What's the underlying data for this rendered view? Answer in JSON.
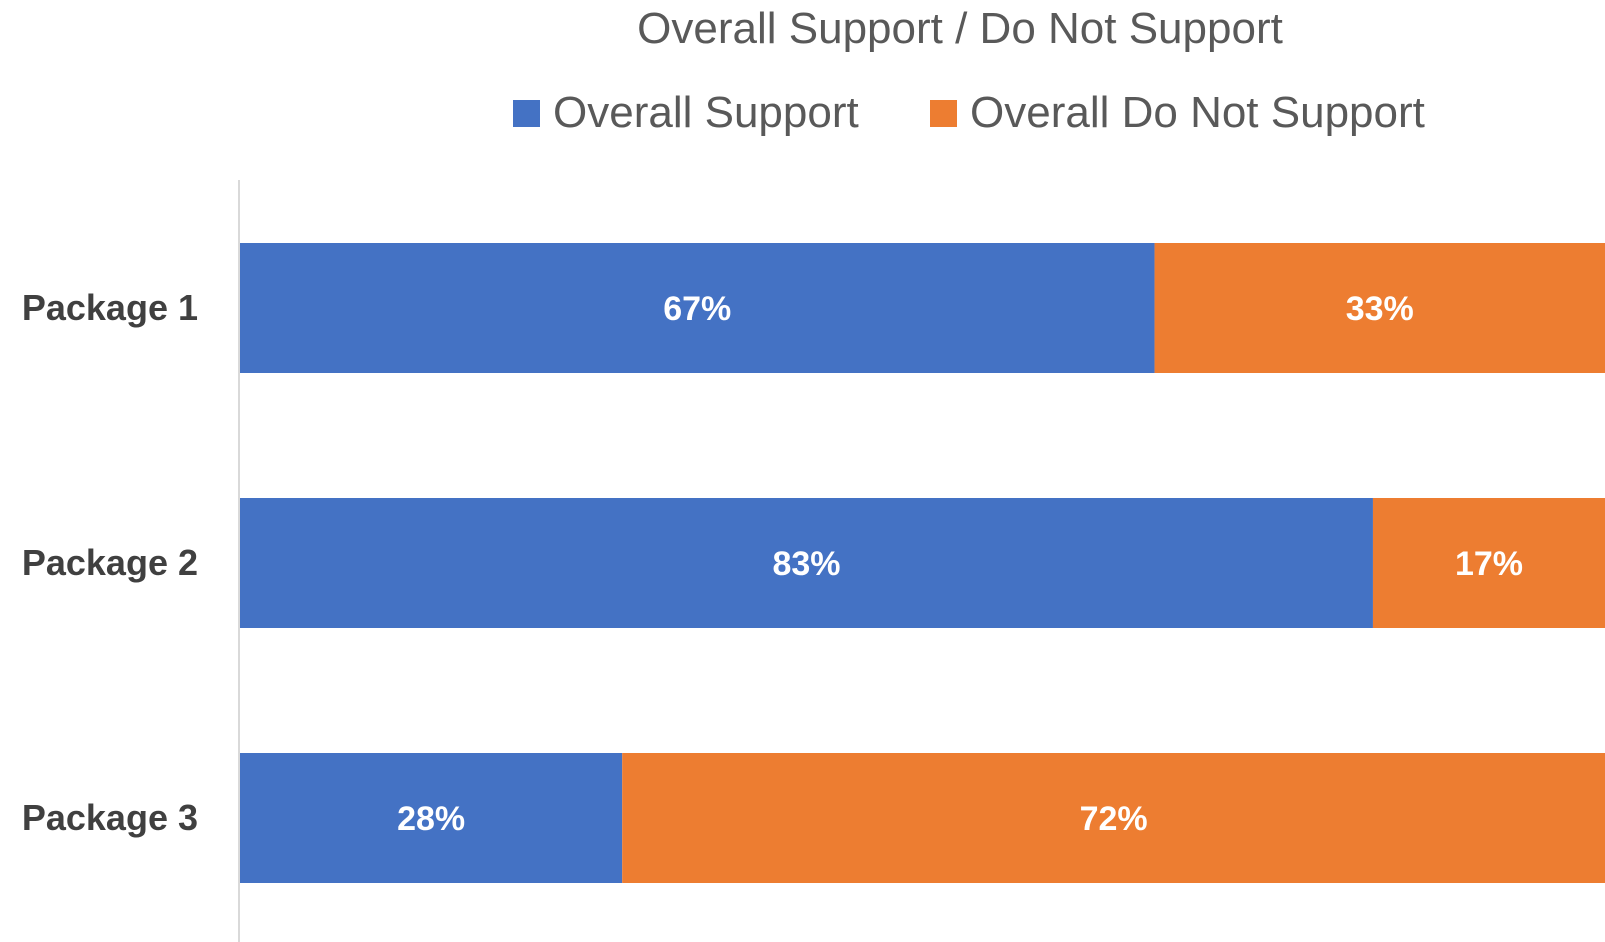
{
  "chart_data": {
    "type": "bar",
    "orientation": "horizontal",
    "stacked": true,
    "title": "Overall Support / Do Not Support",
    "categories": [
      "Package 1",
      "Package 2",
      "Package 3"
    ],
    "series": [
      {
        "name": "Overall Support",
        "values": [
          67,
          83,
          28
        ],
        "labels": [
          "67%",
          "83%",
          "28%"
        ],
        "color": "#4472C4"
      },
      {
        "name": "Overall Do Not Support",
        "values": [
          33,
          17,
          72
        ],
        "labels": [
          "33%",
          "17%",
          "72%"
        ],
        "color": "#ED7D31"
      }
    ],
    "xlim": [
      0,
      100
    ],
    "legend_position": "top",
    "grid": false
  }
}
